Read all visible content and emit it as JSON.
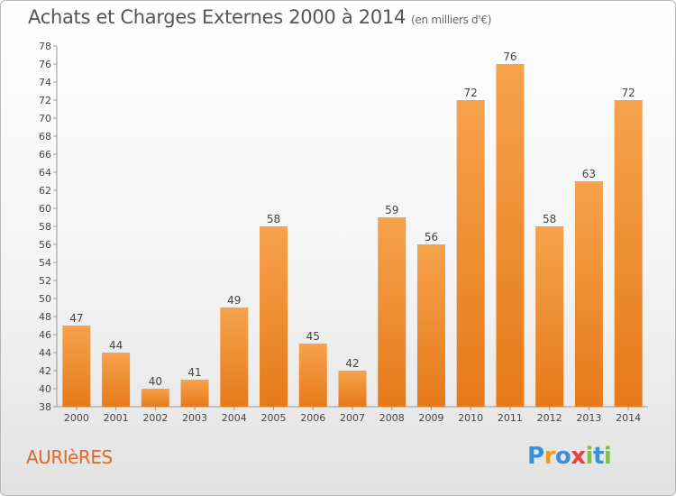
{
  "header": {
    "title": "Achats et Charges Externes 2000 à 2014",
    "subtitle": "(en milliers d'€)"
  },
  "commune": "AURIèRES",
  "logo": {
    "letters": [
      "P",
      "r",
      "o",
      "x",
      "i",
      "t",
      "i"
    ],
    "colors": [
      "#3a8fd8",
      "#f39a1c",
      "#3a8fd8",
      "#e8403a",
      "#7cc24a",
      "#3a8fd8",
      "#7cc24a"
    ]
  },
  "chart_data": {
    "type": "bar",
    "categories": [
      "2000",
      "2001",
      "2002",
      "2003",
      "2004",
      "2005",
      "2006",
      "2007",
      "2008",
      "2009",
      "2010",
      "2011",
      "2012",
      "2013",
      "2014"
    ],
    "values": [
      47,
      44,
      40,
      41,
      49,
      58,
      45,
      42,
      59,
      56,
      72,
      76,
      58,
      63,
      72
    ],
    "title": "Achats et Charges Externes 2000 à 2014",
    "ylim": [
      38,
      78
    ],
    "yticks": [
      38,
      40,
      42,
      44,
      46,
      48,
      50,
      52,
      54,
      56,
      58,
      60,
      62,
      64,
      66,
      68,
      70,
      72,
      74,
      76,
      78
    ],
    "grid": false,
    "bar_color": "#f0892e"
  }
}
